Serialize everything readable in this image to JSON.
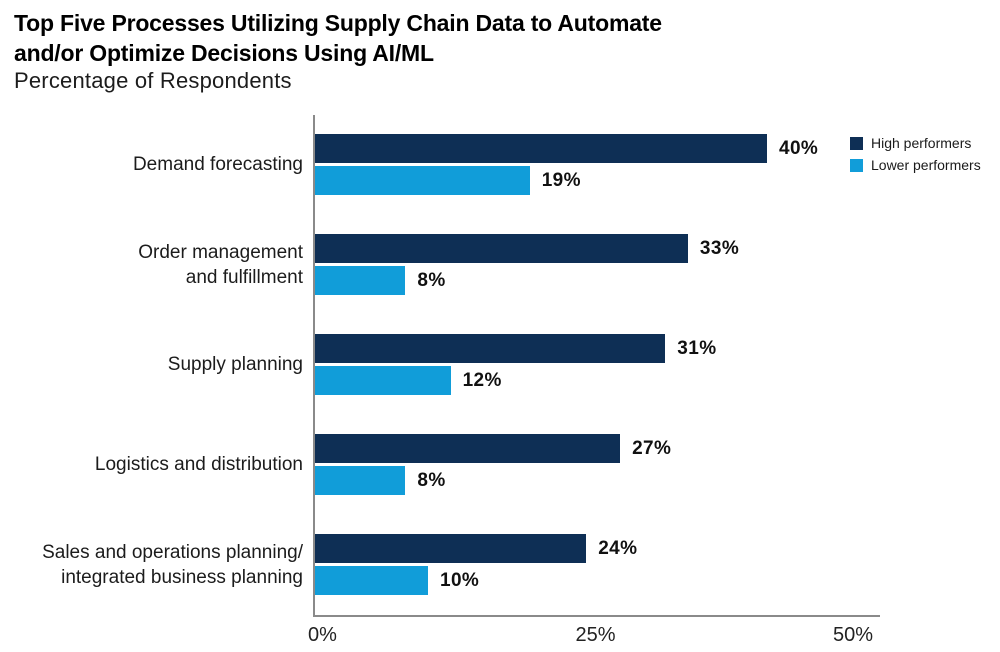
{
  "title_lines": [
    "Top Five Processes Utilizing Supply Chain Data to Automate",
    "and/or Optimize Decisions Using AI/ML"
  ],
  "subtitle": "Percentage of Respondents",
  "colors": {
    "high_performers": "#0E2F55",
    "lower_performers": "#119DD9",
    "axis": "#8A8A8A",
    "value_label": "#111111"
  },
  "legend": {
    "position": "top-right",
    "items": [
      {
        "label": "High performers",
        "color": "#0E2F55"
      },
      {
        "label": "Lower performers",
        "color": "#119DD9"
      }
    ]
  },
  "x_axis": {
    "tick_labels": [
      "0%",
      "25%",
      "50%"
    ],
    "tick_values": [
      0,
      25,
      50
    ],
    "max": 50
  },
  "chart_data": {
    "type": "bar",
    "orientation": "horizontal",
    "title": "Top Five Processes Utilizing Supply Chain Data to Automate and/or Optimize Decisions Using AI/ML",
    "subtitle": "Percentage of Respondents",
    "categories": [
      "Demand forecasting",
      "Order management and fulfillment",
      "Supply planning",
      "Logistics and distribution",
      "Sales and operations planning/integrated business planning"
    ],
    "category_label_lines": [
      [
        "Demand forecasting"
      ],
      [
        "Order management",
        "and fulfillment"
      ],
      [
        "Supply planning"
      ],
      [
        "Logistics and distribution"
      ],
      [
        "Sales and operations planning/",
        "integrated business planning"
      ]
    ],
    "series": [
      {
        "name": "High performers",
        "color": "#0E2F55",
        "values": [
          40,
          33,
          31,
          27,
          24
        ]
      },
      {
        "name": "Lower performers",
        "color": "#119DD9",
        "values": [
          19,
          8,
          12,
          8,
          10
        ]
      }
    ],
    "value_label_format": "{v}%",
    "xlabel": "",
    "ylabel": "",
    "xlim": [
      0,
      50
    ],
    "grid": false,
    "legend_position": "top-right"
  }
}
